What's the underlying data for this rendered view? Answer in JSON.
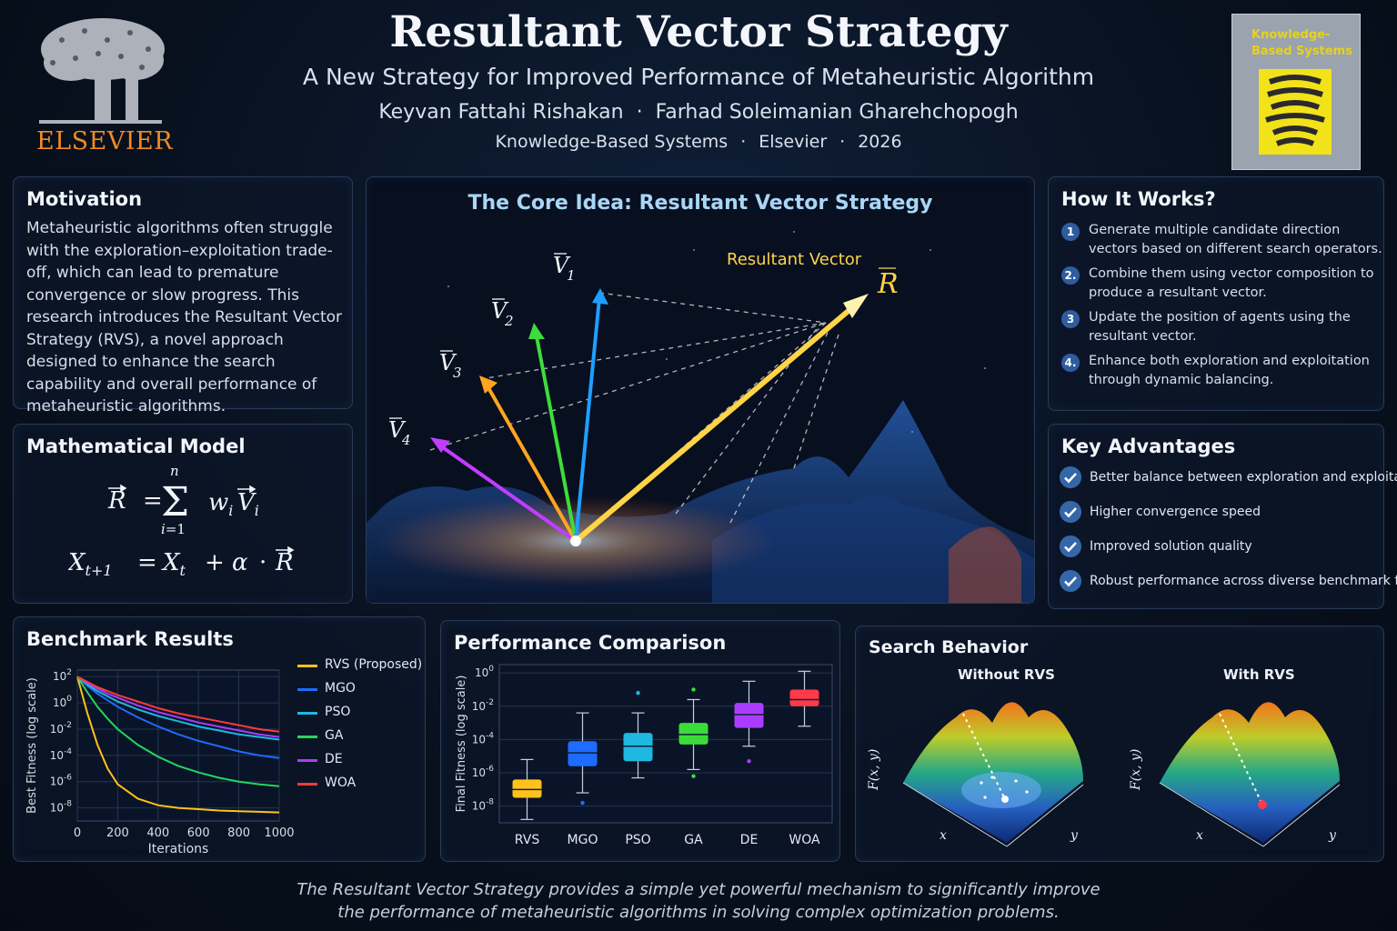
{
  "header": {
    "title": "Resultant Vector Strategy",
    "subtitle": "A New Strategy for Improved Performance of Metaheuristic Algorithm",
    "authors": [
      "Keyvan Fattahi Rishakan",
      "Farhad Soleimanian Gharehchopogh"
    ],
    "venue": [
      "Knowledge-Based Systems",
      "Elsevier",
      "2026"
    ],
    "separator": "·"
  },
  "logo": {
    "word": "ELSEVIER",
    "icon": "tree-logo-icon"
  },
  "cover": {
    "title": "Knowledge-Based Systems"
  },
  "motivation": {
    "title": "Motivation",
    "text": "Metaheuristic algorithms often struggle with the exploration–exploitation trade-off, which can lead to premature convergence or slow progress. This research introduces the Resultant Vector Strategy (RVS), a novel approach designed to enhance the search capability and overall performance of metaheuristic algorithms."
  },
  "model": {
    "title": "Mathematical Model"
  },
  "core": {
    "title": "The Core Idea: Resultant Vector Strategy",
    "resultant_label": "Resultant Vector",
    "vectors": [
      {
        "label": "V",
        "sub": "1",
        "color": "#1e9fff"
      },
      {
        "label": "V",
        "sub": "2",
        "color": "#3ddc3a"
      },
      {
        "label": "V",
        "sub": "3",
        "color": "#ffa51f"
      },
      {
        "label": "V",
        "sub": "4",
        "color": "#c13dff"
      }
    ],
    "resultant_symbol": "R",
    "resultant_color": "#ffd447"
  },
  "how": {
    "title": "How It Works?",
    "steps": [
      {
        "num": "1",
        "text": "Generate multiple candidate direction vectors based on different search operators."
      },
      {
        "num": "2.",
        "text": "Combine them using vector composition to produce a resultant vector."
      },
      {
        "num": "3",
        "text": "Update the position of agents using the resultant vector."
      },
      {
        "num": "4.",
        "text": "Enhance both exploration and exploitation through dynamic balancing."
      }
    ]
  },
  "advantages": {
    "title": "Key Advantages",
    "items": [
      "Better balance between exploration and exploitation",
      "Higher convergence speed",
      "Improved solution quality",
      "Robust performance across diverse benchmark functions"
    ]
  },
  "benchmark": {
    "title": "Benchmark Results"
  },
  "performance": {
    "title": "Performance Comparison"
  },
  "search": {
    "title": "Search Behavior",
    "left_label": "Without RVS",
    "right_label": "With RVS",
    "zlabel": "F(x, y)",
    "xlabel": "x",
    "ylabel": "y"
  },
  "chart_data": [
    {
      "type": "line",
      "title": "",
      "xlabel": "Iterations",
      "ylabel": "Best Fitness (log scale)",
      "xlim": [
        0,
        1000
      ],
      "ylim_log10": [
        -9,
        2.5
      ],
      "x_ticks": [
        "0",
        "200",
        "400",
        "600",
        "800",
        "1000"
      ],
      "y_ticks": [
        {
          "base": "10",
          "exp": "2",
          "value": 2
        },
        {
          "base": "10",
          "exp": "0",
          "value": 0
        },
        {
          "base": "10",
          "exp": "-2",
          "value": -2
        },
        {
          "base": "10",
          "exp": "-4",
          "value": -4
        },
        {
          "base": "10",
          "exp": "-6",
          "value": -6
        },
        {
          "base": "10",
          "exp": "-8",
          "value": -8
        }
      ],
      "grid": true,
      "legend": "right",
      "x": [
        0,
        50,
        100,
        150,
        200,
        300,
        400,
        500,
        600,
        700,
        800,
        900,
        1000
      ],
      "series": [
        {
          "name": "RVS (Proposed)",
          "color": "#ffc21a",
          "log10_values": [
            2,
            -0.8,
            -3.2,
            -5.0,
            -6.2,
            -7.3,
            -7.8,
            -8.0,
            -8.1,
            -8.2,
            -8.25,
            -8.3,
            -8.35
          ]
        },
        {
          "name": "MGO",
          "color": "#1d6cff",
          "log10_values": [
            2,
            1.3,
            0.7,
            0.2,
            -0.3,
            -1.1,
            -1.8,
            -2.4,
            -2.9,
            -3.3,
            -3.7,
            -4.0,
            -4.2
          ]
        },
        {
          "name": "PSO",
          "color": "#1fb8e0",
          "log10_values": [
            2,
            1.4,
            0.9,
            0.5,
            0.1,
            -0.5,
            -1.0,
            -1.4,
            -1.8,
            -2.1,
            -2.4,
            -2.6,
            -2.8
          ]
        },
        {
          "name": "GA",
          "color": "#22d65c",
          "log10_values": [
            2,
            0.8,
            -0.3,
            -1.2,
            -2.0,
            -3.2,
            -4.1,
            -4.8,
            -5.3,
            -5.7,
            -6.0,
            -6.2,
            -6.35
          ]
        },
        {
          "name": "DE",
          "color": "#a93cff",
          "log10_values": [
            2,
            1.5,
            1.1,
            0.7,
            0.4,
            -0.2,
            -0.7,
            -1.1,
            -1.5,
            -1.8,
            -2.1,
            -2.4,
            -2.6
          ]
        },
        {
          "name": "WOA",
          "color": "#ff3a3a",
          "log10_values": [
            2,
            1.6,
            1.2,
            0.9,
            0.6,
            0.1,
            -0.4,
            -0.8,
            -1.1,
            -1.4,
            -1.7,
            -2.0,
            -2.2
          ]
        }
      ]
    },
    {
      "type": "box",
      "title": "",
      "xlabel": "",
      "ylabel": "Final Fitness (log scale)",
      "ylim_log10": [
        -9,
        0.5
      ],
      "y_ticks": [
        {
          "base": "10",
          "exp": "0",
          "value": 0
        },
        {
          "base": "10",
          "exp": "-2",
          "value": -2
        },
        {
          "base": "10",
          "exp": "-4",
          "value": -4
        },
        {
          "base": "10",
          "exp": "-6",
          "value": -6
        },
        {
          "base": "10",
          "exp": "-8",
          "value": -8
        }
      ],
      "grid": true,
      "categories": [
        "RVS",
        "MGO",
        "PSO",
        "GA",
        "DE",
        "WOA"
      ],
      "colors": [
        "#ffc21a",
        "#1d6cff",
        "#1fb8e0",
        "#3bdc3a",
        "#a93cff",
        "#ff3a4a"
      ],
      "log10_boxes": [
        {
          "min": -8.8,
          "q1": -7.5,
          "median": -7.0,
          "q3": -6.4,
          "max": -5.2,
          "outliers": []
        },
        {
          "min": -7.2,
          "q1": -5.6,
          "median": -4.8,
          "q3": -4.1,
          "max": -2.4,
          "outliers": [
            -7.8
          ]
        },
        {
          "min": -6.3,
          "q1": -5.3,
          "median": -4.4,
          "q3": -3.6,
          "max": -2.4,
          "outliers": [
            -1.2
          ]
        },
        {
          "min": -5.8,
          "q1": -4.3,
          "median": -3.7,
          "q3": -3.0,
          "max": -1.6,
          "outliers": [
            -6.2,
            -1.0
          ]
        },
        {
          "min": -4.4,
          "q1": -3.3,
          "median": -2.5,
          "q3": -1.8,
          "max": -0.5,
          "outliers": [
            -5.3
          ]
        },
        {
          "min": -3.2,
          "q1": -2.0,
          "median": -1.6,
          "q3": -1.0,
          "max": 0.1,
          "outliers": []
        }
      ]
    }
  ],
  "footer": [
    "The Resultant Vector Strategy provides a simple yet powerful mechanism to significantly improve",
    "the performance of metaheuristic algorithms in solving complex optimization problems."
  ]
}
